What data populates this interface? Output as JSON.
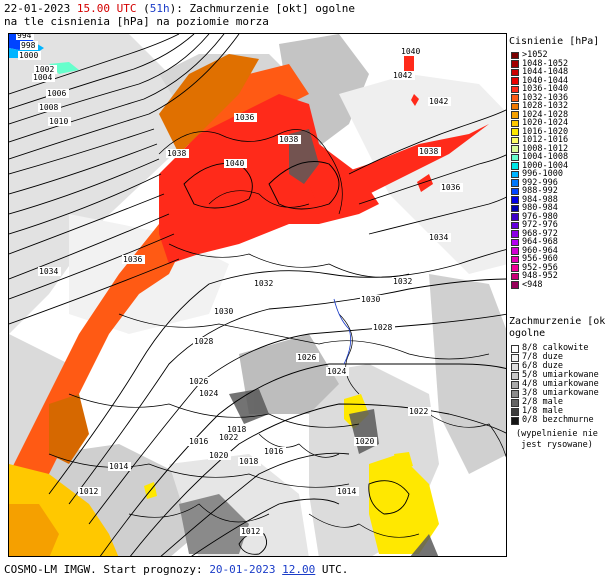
{
  "header": {
    "date": "22-01-2023",
    "time": "15.00 UTC",
    "lead_open": "(",
    "lead": "51h",
    "lead_close": "):",
    "title_rest": "Zachmurzenie [okt] ogolne",
    "line2": "na tle cisnienia [hPa] na poziomie morza"
  },
  "legend_pressure": {
    "title": "Cisnienie [hPa]",
    "items": [
      {
        "label": ">1052",
        "color": "#7a0000"
      },
      {
        "label": "1048-1052",
        "color": "#a30000"
      },
      {
        "label": "1044-1048",
        "color": "#cc0000"
      },
      {
        "label": "1040-1044",
        "color": "#e80000"
      },
      {
        "label": "1036-1040",
        "color": "#ff2a1a"
      },
      {
        "label": "1032-1036",
        "color": "#ff5a14"
      },
      {
        "label": "1028-1032",
        "color": "#f07800"
      },
      {
        "label": "1024-1028",
        "color": "#f5a000"
      },
      {
        "label": "1020-1024",
        "color": "#ffc800"
      },
      {
        "label": "1016-1020",
        "color": "#ffe800"
      },
      {
        "label": "1012-1016",
        "color": "#ffff66"
      },
      {
        "label": "1008-1012",
        "color": "#d9ff99"
      },
      {
        "label": "1004-1008",
        "color": "#66ffcc"
      },
      {
        "label": "1000-1004",
        "color": "#00e6e6"
      },
      {
        "label": "996-1000",
        "color": "#00b4ff"
      },
      {
        "label": "992-996",
        "color": "#0078ff"
      },
      {
        "label": "988-992",
        "color": "#0044ff"
      },
      {
        "label": "984-988",
        "color": "#0000e6"
      },
      {
        "label": "980-984",
        "color": "#0000b4"
      },
      {
        "label": "976-980",
        "color": "#3c00c8"
      },
      {
        "label": "972-976",
        "color": "#6400dc"
      },
      {
        "label": "968-972",
        "color": "#8c00e6"
      },
      {
        "label": "964-968",
        "color": "#b400f0"
      },
      {
        "label": "960-964",
        "color": "#d200d2"
      },
      {
        "label": "956-960",
        "color": "#e600b4"
      },
      {
        "label": "952-956",
        "color": "#f00096"
      },
      {
        "label": "948-952",
        "color": "#c80078"
      },
      {
        "label": "<948",
        "color": "#96005a"
      }
    ]
  },
  "legend_cloud": {
    "title1": "Zachmurzenie [okt]",
    "title2": "ogolne",
    "items": [
      {
        "label": "8/8 calkowite",
        "color": "#ffffff"
      },
      {
        "label": "7/8 duze",
        "color": "#f0f0f0"
      },
      {
        "label": "6/8 duze",
        "color": "#dcdcdc"
      },
      {
        "label": "5/8 umiarkowane",
        "color": "#c8c8c8"
      },
      {
        "label": "4/8 umiarkowane",
        "color": "#aaaaaa"
      },
      {
        "label": "3/8 umiarkowane",
        "color": "#8c8c8c"
      },
      {
        "label": "2/8 male",
        "color": "#646464"
      },
      {
        "label": "1/8 male",
        "color": "#3c3c3c"
      },
      {
        "label": "0/8 bezchmurne",
        "color": "#141414"
      }
    ],
    "note1": "(wypelnienie nie",
    "note2": "jest rysowane)"
  },
  "footer": {
    "text": "COSMO-LM IMGW. Start prognozy: ",
    "date": "20-01-2023",
    "time": "12.00",
    "tz": " UTC."
  },
  "isobar_labels": [
    "1040",
    "1042",
    "1042",
    "1038",
    "1036",
    "1034",
    "1032",
    "1030",
    "1028",
    "1026",
    "1024",
    "1022",
    "1020",
    "1018",
    "1016",
    "1014",
    "1012",
    "1034",
    "1036",
    "1038",
    "1040",
    "1036",
    "1038",
    "1032",
    "1030",
    "1028",
    "1026",
    "1024",
    "1022",
    "1020",
    "1018",
    "1016",
    "1014",
    "1012",
    "1010",
    "1008",
    "1006",
    "1004",
    "1002",
    "1000",
    "998",
    "994"
  ]
}
